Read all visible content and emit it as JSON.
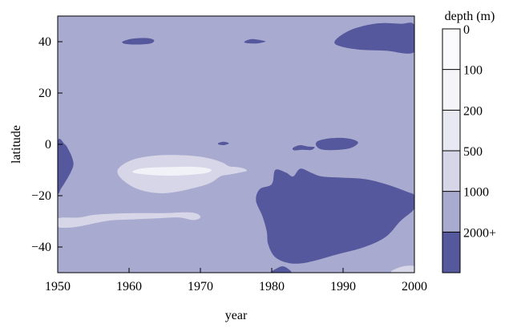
{
  "chart_data": {
    "type": "heatmap",
    "title": "",
    "xlabel": "year",
    "ylabel": "latitude",
    "xlim": [
      1950,
      2000
    ],
    "ylim": [
      -50,
      50
    ],
    "x_ticks": [
      "1950",
      "1960",
      "1970",
      "1980",
      "1990",
      "2000"
    ],
    "y_ticks": [
      "40",
      "20",
      "0",
      "−20",
      "−40"
    ],
    "background_level": "2000",
    "colorbar": {
      "label": "depth (m)",
      "levels": [
        {
          "label": "0",
          "color": "#ffffff"
        },
        {
          "label": "100",
          "color": "#fbfbfd"
        },
        {
          "label": "200",
          "color": "#f4f4f9"
        },
        {
          "label": "500",
          "color": "#e8e8f2"
        },
        {
          "label": "1000",
          "color": "#d6d6e8"
        },
        {
          "label": "2000+",
          "color": "#a9aacf"
        },
        {
          "label": "",
          "color": "#55589c"
        }
      ]
    },
    "regions": [
      {
        "level": "deep",
        "color": "#55589c",
        "points": [
          [
            1959.1,
            40.1
          ],
          [
            1960.5,
            41.2
          ],
          [
            1962.5,
            41.4
          ],
          [
            1963.5,
            40.6
          ],
          [
            1963,
            39.3
          ],
          [
            1961,
            38.9
          ],
          [
            1959.4,
            39.2
          ]
        ]
      },
      {
        "level": "deep",
        "color": "#55589c",
        "points": [
          [
            1976.2,
            40.1
          ],
          [
            1977.2,
            41
          ],
          [
            1978.6,
            40.5
          ],
          [
            1979.1,
            40
          ],
          [
            1977.8,
            39.3
          ],
          [
            1976.4,
            39.5
          ]
        ]
      },
      {
        "level": "deep",
        "color": "#55589c",
        "points": [
          [
            1988.8,
            40
          ],
          [
            1990,
            43
          ],
          [
            1992,
            45.5
          ],
          [
            1995,
            47.2
          ],
          [
            1998,
            47
          ],
          [
            2000,
            46.5
          ],
          [
            2000,
            36
          ],
          [
            1996,
            36.5
          ],
          [
            1992,
            37
          ],
          [
            1989.5,
            38.3
          ]
        ]
      },
      {
        "level": "deep",
        "color": "#55589c",
        "points": [
          [
            1950,
            1
          ],
          [
            1951,
            0
          ],
          [
            1951.5,
            -2
          ],
          [
            1952,
            -5
          ],
          [
            1952.2,
            -8
          ],
          [
            1951.8,
            -11
          ],
          [
            1951.2,
            -14
          ],
          [
            1950.5,
            -17
          ],
          [
            1950,
            -18
          ]
        ]
      },
      {
        "level": "deep",
        "color": "#55589c",
        "points": [
          [
            1972.5,
            0.5
          ],
          [
            1973.3,
            1
          ],
          [
            1974,
            0.4
          ],
          [
            1973.3,
            -0.3
          ],
          [
            1972.6,
            -0.1
          ]
        ]
      },
      {
        "level": "deep",
        "color": "#55589c",
        "points": [
          [
            1983,
            -1.3
          ],
          [
            1984,
            -0.3
          ],
          [
            1985,
            -0.8
          ],
          [
            1986,
            -1.1
          ],
          [
            1985.5,
            -2.2
          ],
          [
            1984.3,
            -2.1
          ],
          [
            1983.1,
            -2.3
          ]
        ]
      },
      {
        "level": "deep",
        "color": "#55589c",
        "points": [
          [
            1986.2,
            -0.3
          ],
          [
            1986.5,
            1.3
          ],
          [
            1988,
            2.3
          ],
          [
            1990,
            2.5
          ],
          [
            1991.5,
            1.8
          ],
          [
            1992.1,
            0.5
          ],
          [
            1991,
            -1.5
          ],
          [
            1989,
            -2.2
          ],
          [
            1987,
            -2
          ]
        ]
      },
      {
        "level": "deep",
        "color": "#55589c",
        "points": [
          [
            1980,
            -15.5
          ],
          [
            1980.5,
            -10
          ],
          [
            1982,
            -11
          ],
          [
            1983,
            -12.5
          ],
          [
            1984,
            -9.5
          ],
          [
            1985.5,
            -11
          ],
          [
            1987,
            -12.5
          ],
          [
            1990,
            -13
          ],
          [
            1993,
            -13.5
          ],
          [
            1996,
            -15.5
          ],
          [
            1999,
            -18.5
          ],
          [
            2000,
            -20
          ],
          [
            2000,
            -25
          ],
          [
            1998,
            -30
          ],
          [
            1996,
            -36
          ],
          [
            1993,
            -40
          ],
          [
            1989,
            -43
          ],
          [
            1985,
            -46
          ],
          [
            1982.5,
            -46.3
          ],
          [
            1980.5,
            -44
          ],
          [
            1979.5,
            -39
          ],
          [
            1979.3,
            -34
          ],
          [
            1978.7,
            -28
          ],
          [
            1977.8,
            -22
          ],
          [
            1978.3,
            -17.5
          ]
        ]
      },
      {
        "level": "deep",
        "color": "#55589c",
        "points": [
          [
            1980,
            -50
          ],
          [
            1980.6,
            -48.5
          ],
          [
            1981.5,
            -47.5
          ],
          [
            1982.3,
            -48.5
          ],
          [
            1982.6,
            -50
          ]
        ]
      },
      {
        "level": "light",
        "color": "#d6d6e8",
        "points": [
          [
            1958.5,
            -9.5
          ],
          [
            1960.5,
            -6
          ],
          [
            1964,
            -4.3
          ],
          [
            1968,
            -4.3
          ],
          [
            1971,
            -5.3
          ],
          [
            1973,
            -7
          ],
          [
            1974,
            -8.5
          ],
          [
            1975,
            -8.8
          ],
          [
            1976,
            -9.3
          ],
          [
            1976.5,
            -10.3
          ],
          [
            1975.5,
            -11
          ],
          [
            1974,
            -11.8
          ],
          [
            1972.8,
            -12.5
          ],
          [
            1971,
            -15.5
          ],
          [
            1967,
            -18.3
          ],
          [
            1964,
            -19
          ],
          [
            1961,
            -17.2
          ],
          [
            1958.8,
            -13
          ]
        ]
      },
      {
        "level": "light",
        "color": "#d6d6e8",
        "points": [
          [
            1950,
            -28.8
          ],
          [
            1953,
            -28.5
          ],
          [
            1955,
            -27.5
          ],
          [
            1958,
            -27
          ],
          [
            1961,
            -26.8
          ],
          [
            1965,
            -26.8
          ],
          [
            1968,
            -26.5
          ],
          [
            1969.5,
            -27
          ],
          [
            1970,
            -28.5
          ],
          [
            1969,
            -29.5
          ],
          [
            1967,
            -28.5
          ],
          [
            1964,
            -28.8
          ],
          [
            1960,
            -29.3
          ],
          [
            1957,
            -29.8
          ],
          [
            1953,
            -32
          ],
          [
            1951,
            -32.5
          ],
          [
            1950,
            -32
          ]
        ]
      },
      {
        "level": "light",
        "color": "#d6d6e8",
        "points": [
          [
            1997,
            -49
          ],
          [
            1998.5,
            -47.5
          ],
          [
            2000,
            -47.5
          ],
          [
            2000,
            -50
          ],
          [
            1997,
            -50
          ]
        ]
      },
      {
        "level": "lighter",
        "color": "#f1f1f8",
        "points": [
          [
            1960.5,
            -10.8
          ],
          [
            1962,
            -9.3
          ],
          [
            1966,
            -8.8
          ],
          [
            1969.5,
            -8.8
          ],
          [
            1971.5,
            -9.8
          ],
          [
            1970.5,
            -11.3
          ],
          [
            1966,
            -12.2
          ],
          [
            1962.5,
            -11.8
          ]
        ]
      }
    ]
  }
}
